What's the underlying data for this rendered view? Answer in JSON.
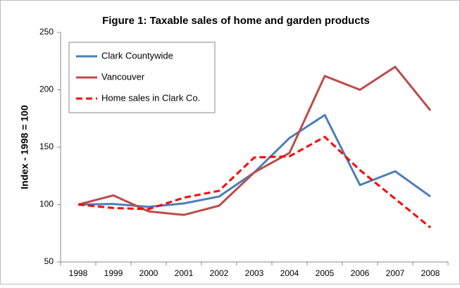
{
  "chart_data": {
    "type": "line",
    "title": "Figure 1: Taxable sales of home and garden products",
    "y_label": "Index - 1998 = 100",
    "categories": [
      "1998",
      "1999",
      "2000",
      "2001",
      "2002",
      "2003",
      "2004",
      "2005",
      "2006",
      "2007",
      "2008"
    ],
    "series": [
      {
        "name": "Clark Countywide",
        "color": "#4a7ebb",
        "dashed": false,
        "values": [
          100,
          100.5,
          98,
          101,
          107,
          128,
          158,
          178,
          117,
          129,
          107
        ]
      },
      {
        "name": "Vancouver",
        "color": "#be4b48",
        "dashed": false,
        "values": [
          100,
          108,
          94,
          91,
          99,
          128,
          145,
          212,
          200,
          220,
          182
        ]
      },
      {
        "name": "Home sales in Clark Co.",
        "color": "#ff0000",
        "dashed": true,
        "values": [
          100,
          97,
          96,
          106,
          112,
          141,
          142,
          159,
          130,
          105,
          80
        ]
      }
    ],
    "ylim": [
      50,
      250
    ],
    "yticks": [
      50,
      100,
      150,
      200,
      250
    ],
    "grid": false,
    "legend": "upper left"
  }
}
